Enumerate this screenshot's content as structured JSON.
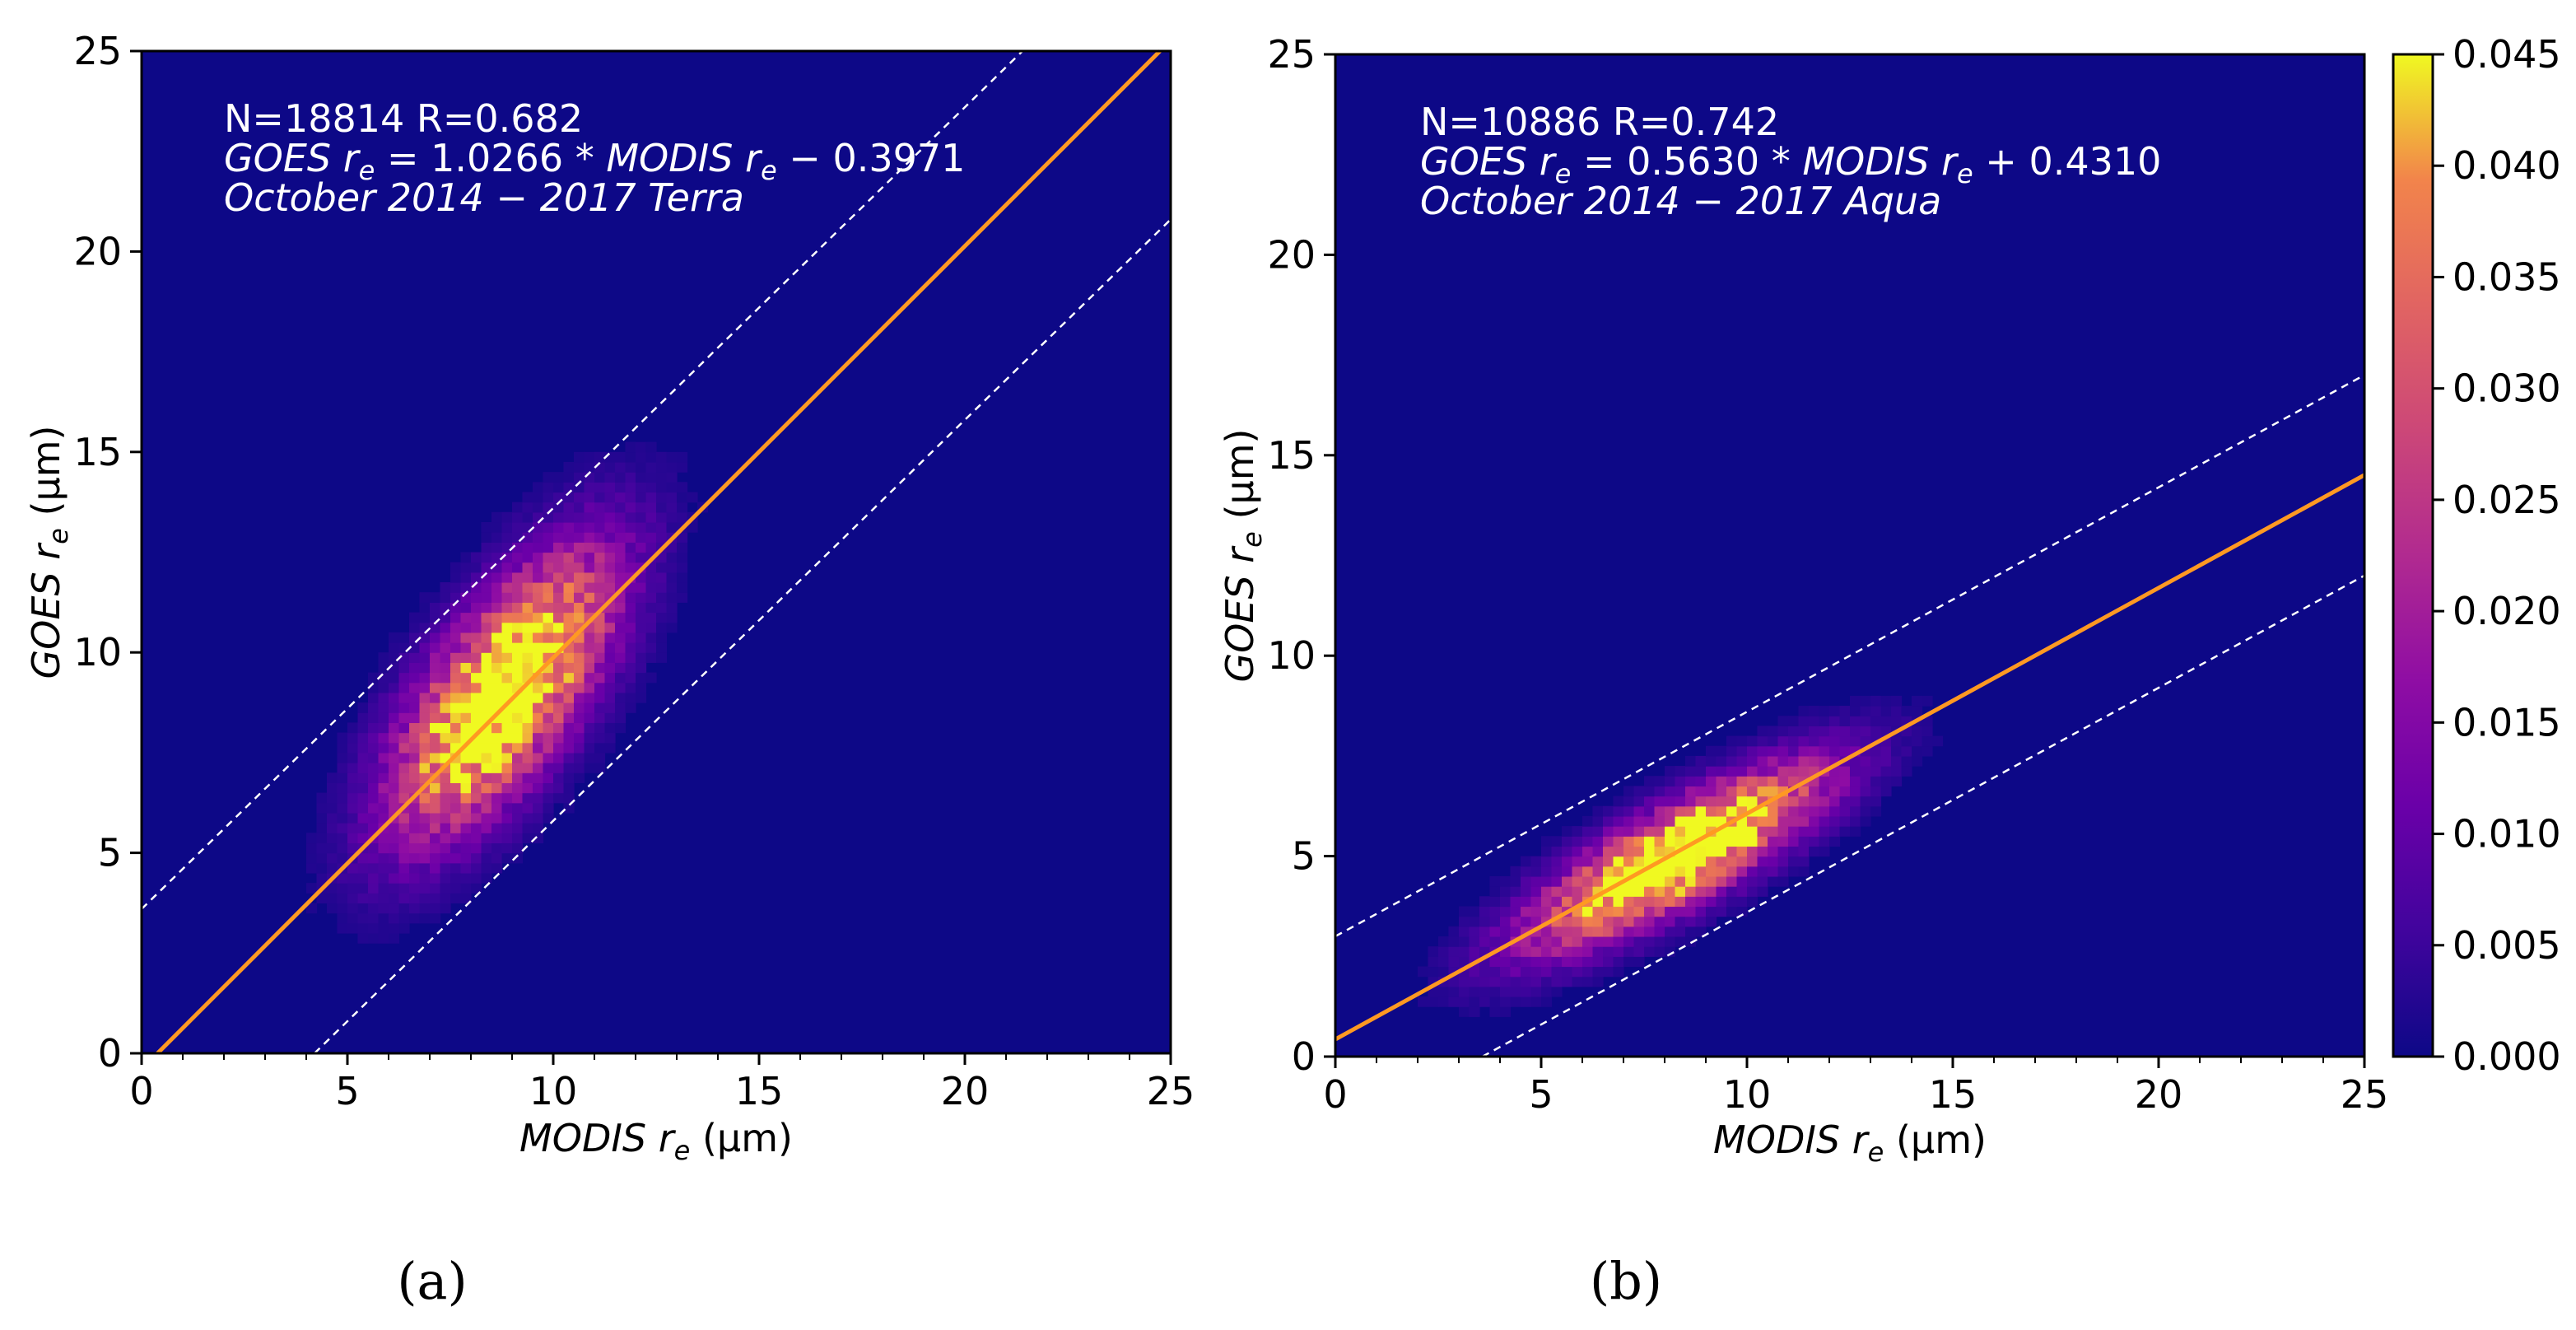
{
  "chart_data": [
    {
      "type": "heatmap",
      "panel_label": "(a)",
      "xlabel": "MODIS r_e (μm)",
      "xlabel_parts": {
        "main": "MODIS r",
        "sub": "e",
        "unit": " (μm)"
      },
      "ylabel": "GOES r_e (μm)",
      "ylabel_parts": {
        "main": "GOES r",
        "sub": "e",
        "unit": " (μm)"
      },
      "xlim": [
        0,
        25
      ],
      "ylim": [
        0,
        25
      ],
      "xticks": [
        "0",
        "5",
        "10",
        "15",
        "20",
        "25"
      ],
      "yticks": [
        "0",
        "5",
        "10",
        "15",
        "20",
        "25"
      ],
      "annotations": {
        "stats": "N=18814     R=0.682",
        "equation": "GOES r_e = 1.0266 * MODIS r_e − 0.3971",
        "period": "October 2014 − 2017    Terra"
      },
      "fit": {
        "slope": 1.0266,
        "intercept": -0.3971
      },
      "bounds": [
        {
          "slope": 1.0,
          "intercept": 3.6
        },
        {
          "slope": 1.0,
          "intercept": -4.2
        }
      ],
      "density": {
        "center": [
          8.8,
          9.0
        ],
        "sigma_along": 2.7,
        "sigma_across": 1.1,
        "angle_deg": 56,
        "peak": 0.045
      }
    },
    {
      "type": "heatmap",
      "panel_label": "(b)",
      "xlabel": "MODIS r_e (μm)",
      "xlabel_parts": {
        "main": "MODIS r",
        "sub": "e",
        "unit": " (μm)"
      },
      "ylabel": "GOES r_e (μm)",
      "ylabel_parts": {
        "main": "GOES r",
        "sub": "e",
        "unit": " (μm)"
      },
      "xlim": [
        0,
        25
      ],
      "ylim": [
        0,
        25
      ],
      "xticks": [
        "0",
        "5",
        "10",
        "15",
        "20",
        "25"
      ],
      "yticks": [
        "0",
        "5",
        "10",
        "15",
        "20",
        "25"
      ],
      "annotations": {
        "stats": "N=10886     R=0.742",
        "equation": "GOES r_e = 0.5630 * MODIS r_e + 0.4310",
        "period": "October 2014 − 2017    Aqua"
      },
      "fit": {
        "slope": 0.563,
        "intercept": 0.431
      },
      "bounds": [
        {
          "slope": 0.56,
          "intercept": 3.0
        },
        {
          "slope": 0.56,
          "intercept": -2.0
        }
      ],
      "density": {
        "center": [
          8.3,
          5.0
        ],
        "sigma_along": 2.7,
        "sigma_across": 0.75,
        "angle_deg": 30,
        "peak": 0.045
      }
    }
  ],
  "colorbar": {
    "ticks": [
      "0.000",
      "0.005",
      "0.010",
      "0.015",
      "0.020",
      "0.025",
      "0.030",
      "0.035",
      "0.040",
      "0.045"
    ],
    "range": [
      0,
      0.045
    ],
    "colormap": "plasma"
  },
  "colors": {
    "background_low": "#0d0887",
    "fit_line": "#ff9922",
    "bound_line": "#ffffff"
  }
}
